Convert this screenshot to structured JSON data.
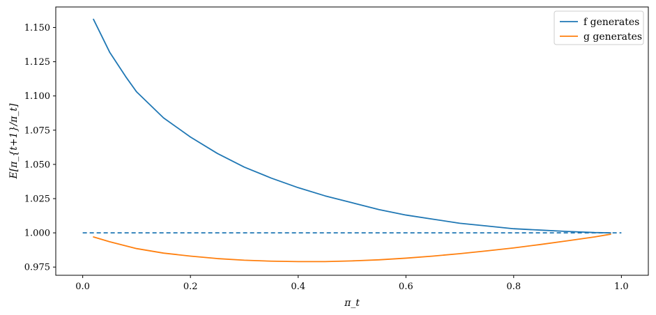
{
  "chart_data": {
    "type": "line",
    "xlabel": "π_t",
    "ylabel": "E[π_{t+1}/π_t]",
    "xlim": [
      -0.05,
      1.05
    ],
    "ylim": [
      0.969,
      1.165
    ],
    "xticks": [
      "0.0",
      "0.2",
      "0.4",
      "0.6",
      "0.8",
      "1.0"
    ],
    "yticks": [
      "0.975",
      "1.000",
      "1.025",
      "1.050",
      "1.075",
      "1.100",
      "1.125",
      "1.150"
    ],
    "legend_position": "top-right",
    "grid": false,
    "colors": {
      "f": "#1f77b4",
      "g": "#ff7f0e"
    },
    "series": [
      {
        "name": "f generates",
        "x": [
          0.02,
          0.05,
          0.08,
          0.1,
          0.15,
          0.2,
          0.25,
          0.3,
          0.35,
          0.4,
          0.45,
          0.5,
          0.55,
          0.6,
          0.65,
          0.7,
          0.75,
          0.8,
          0.85,
          0.9,
          0.95,
          0.98
        ],
        "values": [
          1.156,
          1.132,
          1.114,
          1.103,
          1.084,
          1.07,
          1.058,
          1.048,
          1.04,
          1.033,
          1.027,
          1.022,
          1.017,
          1.013,
          1.01,
          1.007,
          1.005,
          1.003,
          1.002,
          1.001,
          1.0002,
          1.0
        ]
      },
      {
        "name": "g generates",
        "x": [
          0.02,
          0.05,
          0.1,
          0.15,
          0.2,
          0.25,
          0.3,
          0.35,
          0.4,
          0.45,
          0.5,
          0.55,
          0.6,
          0.65,
          0.7,
          0.75,
          0.8,
          0.85,
          0.9,
          0.95,
          0.98
        ],
        "values": [
          0.997,
          0.9935,
          0.9885,
          0.9852,
          0.983,
          0.9812,
          0.98,
          0.9793,
          0.979,
          0.979,
          0.9795,
          0.9803,
          0.9815,
          0.983,
          0.9848,
          0.9868,
          0.989,
          0.9915,
          0.9942,
          0.997,
          0.999
        ]
      }
    ],
    "hline": {
      "y": 1.0,
      "xmin": 0.0,
      "xmax": 1.0,
      "style": "dashed"
    }
  }
}
